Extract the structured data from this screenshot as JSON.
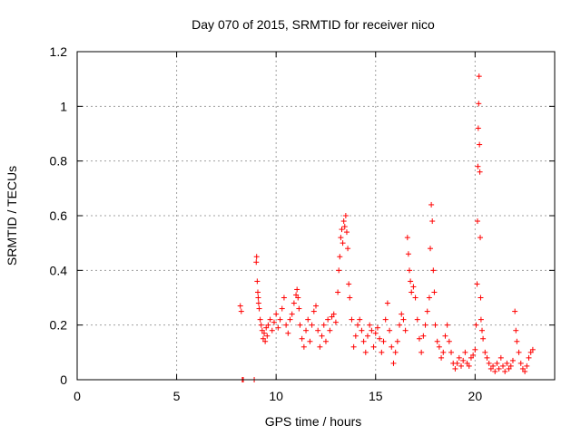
{
  "chart_data": {
    "type": "scatter",
    "title": "Day 070 of 2015, SRMTID for receiver nico",
    "xlabel": "GPS time / hours",
    "ylabel": "SRMTID / TECUs",
    "xlim": [
      0,
      24
    ],
    "ylim": [
      0,
      1.2
    ],
    "xticks": [
      0,
      5,
      10,
      15,
      20
    ],
    "xtick_labels": [
      "0",
      "5",
      "10",
      "15",
      "20"
    ],
    "yticks": [
      0,
      0.2,
      0.4,
      0.6,
      0.8,
      1.0,
      1.2
    ],
    "ytick_labels": [
      "0",
      "0.2",
      "0.4",
      "0.6",
      "0.8",
      "1",
      "1.2"
    ],
    "grid": true,
    "marker": "+",
    "series": [
      {
        "name": "SRMTID",
        "color": "#ff0000",
        "x": [
          8.2,
          8.25,
          8.9,
          8.3,
          8.35,
          9.0,
          9.02,
          9.05,
          9.08,
          9.1,
          9.12,
          9.15,
          9.2,
          9.25,
          9.3,
          9.35,
          9.4,
          9.45,
          9.5,
          9.55,
          9.6,
          9.7,
          9.8,
          9.9,
          10.0,
          10.1,
          10.2,
          10.3,
          10.4,
          10.5,
          10.6,
          10.7,
          10.8,
          10.9,
          11.0,
          11.05,
          11.1,
          11.15,
          11.2,
          11.3,
          11.4,
          11.5,
          11.6,
          11.7,
          11.8,
          11.9,
          12.0,
          12.1,
          12.2,
          12.3,
          12.4,
          12.5,
          12.6,
          12.7,
          12.8,
          12.9,
          13.0,
          13.1,
          13.15,
          13.2,
          13.25,
          13.3,
          13.35,
          13.4,
          13.45,
          13.5,
          13.55,
          13.6,
          13.65,
          13.7,
          13.8,
          13.9,
          14.0,
          14.1,
          14.2,
          14.3,
          14.4,
          14.5,
          14.6,
          14.7,
          14.8,
          14.9,
          15.0,
          15.1,
          15.2,
          15.3,
          15.4,
          15.5,
          15.6,
          15.7,
          15.8,
          15.9,
          16.0,
          16.1,
          16.2,
          16.3,
          16.4,
          16.5,
          16.6,
          16.65,
          16.7,
          16.75,
          16.8,
          16.9,
          17.0,
          17.1,
          17.2,
          17.3,
          17.4,
          17.5,
          17.6,
          17.7,
          17.75,
          17.8,
          17.85,
          17.9,
          17.95,
          18.0,
          18.1,
          18.2,
          18.3,
          18.4,
          18.5,
          18.6,
          18.7,
          18.8,
          18.9,
          19.0,
          19.1,
          19.2,
          19.3,
          19.4,
          19.5,
          19.6,
          19.7,
          19.8,
          19.9,
          20.0,
          20.05,
          20.1,
          20.12,
          20.14,
          20.16,
          20.18,
          20.2,
          20.22,
          20.24,
          20.26,
          20.28,
          20.3,
          20.35,
          20.4,
          20.5,
          20.6,
          20.7,
          20.8,
          20.9,
          21.0,
          21.1,
          21.2,
          21.3,
          21.4,
          21.5,
          21.6,
          21.7,
          21.8,
          21.9,
          22.0,
          22.05,
          22.1,
          22.2,
          22.3,
          22.4,
          22.5,
          22.6,
          22.7,
          22.8,
          22.9
        ],
        "y": [
          0.27,
          0.25,
          0.0,
          0.0,
          0.0,
          0.43,
          0.45,
          0.36,
          0.32,
          0.3,
          0.28,
          0.26,
          0.22,
          0.2,
          0.18,
          0.15,
          0.17,
          0.14,
          0.19,
          0.16,
          0.2,
          0.22,
          0.18,
          0.21,
          0.24,
          0.19,
          0.22,
          0.26,
          0.3,
          0.2,
          0.17,
          0.22,
          0.24,
          0.28,
          0.31,
          0.33,
          0.3,
          0.26,
          0.2,
          0.15,
          0.12,
          0.18,
          0.22,
          0.14,
          0.2,
          0.25,
          0.27,
          0.18,
          0.12,
          0.16,
          0.2,
          0.14,
          0.22,
          0.18,
          0.23,
          0.24,
          0.21,
          0.32,
          0.4,
          0.45,
          0.52,
          0.55,
          0.5,
          0.58,
          0.56,
          0.6,
          0.54,
          0.48,
          0.35,
          0.3,
          0.22,
          0.12,
          0.16,
          0.2,
          0.22,
          0.18,
          0.14,
          0.1,
          0.16,
          0.2,
          0.18,
          0.12,
          0.17,
          0.19,
          0.15,
          0.1,
          0.14,
          0.22,
          0.28,
          0.18,
          0.12,
          0.06,
          0.1,
          0.14,
          0.2,
          0.24,
          0.22,
          0.18,
          0.52,
          0.46,
          0.4,
          0.36,
          0.32,
          0.34,
          0.3,
          0.22,
          0.15,
          0.1,
          0.16,
          0.2,
          0.25,
          0.3,
          0.48,
          0.64,
          0.58,
          0.4,
          0.32,
          0.2,
          0.14,
          0.12,
          0.08,
          0.1,
          0.16,
          0.2,
          0.14,
          0.1,
          0.06,
          0.04,
          0.06,
          0.08,
          0.05,
          0.07,
          0.1,
          0.06,
          0.05,
          0.08,
          0.09,
          0.11,
          0.2,
          0.35,
          0.58,
          0.78,
          0.92,
          1.01,
          1.11,
          0.86,
          0.76,
          0.52,
          0.3,
          0.22,
          0.18,
          0.15,
          0.1,
          0.08,
          0.06,
          0.04,
          0.05,
          0.03,
          0.06,
          0.04,
          0.08,
          0.05,
          0.03,
          0.06,
          0.04,
          0.05,
          0.07,
          0.25,
          0.18,
          0.14,
          0.1,
          0.06,
          0.04,
          0.03,
          0.05,
          0.08,
          0.1,
          0.11
        ]
      }
    ]
  }
}
